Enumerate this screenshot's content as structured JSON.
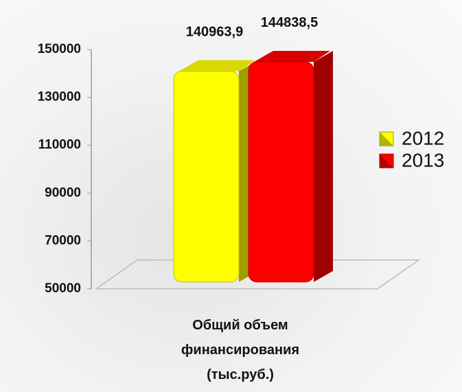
{
  "chart_data": {
    "type": "bar3d",
    "categories": [
      "Общий объем финансирования (тыс.руб.)"
    ],
    "series": [
      {
        "name": "2012",
        "color": "#ffff00",
        "values": [
          140963.9
        ],
        "value_labels": [
          "140963,9"
        ]
      },
      {
        "name": "2013",
        "color": "#ff0000",
        "values": [
          144838.5
        ],
        "value_labels": [
          "144838,5"
        ]
      }
    ],
    "ylim": [
      50000,
      150000
    ],
    "yticks": [
      50000,
      70000,
      90000,
      110000,
      130000,
      150000
    ],
    "legend": "right"
  }
}
